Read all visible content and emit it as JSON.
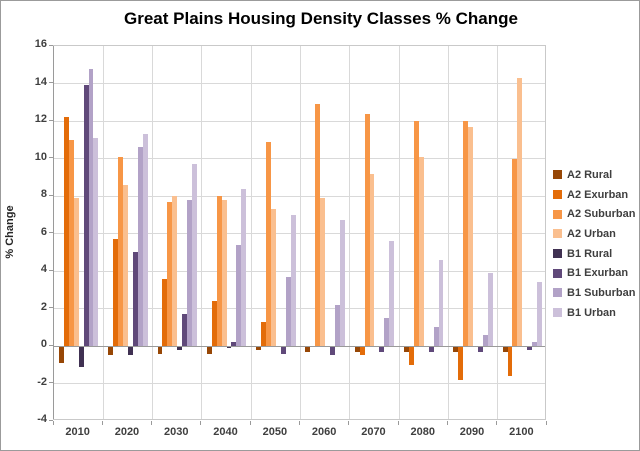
{
  "window": {
    "background": "#ffffff",
    "border_color": "#9b9b9b"
  },
  "chart_data": {
    "type": "bar",
    "title": "Great Plains Housing Density Classes % Change",
    "xlabel": "",
    "ylabel": "% Change",
    "ylim": [
      -4,
      16
    ],
    "yticks": [
      16,
      14,
      12,
      10,
      8,
      6,
      4,
      2,
      0,
      -2,
      -4
    ],
    "grid": true,
    "legend_position": "right",
    "grid_color": "#d9d9d9",
    "axis_color": "#9a9a9a",
    "categories": [
      "2010",
      "2020",
      "2030",
      "2040",
      "2050",
      "2060",
      "2070",
      "2080",
      "2090",
      "2100"
    ],
    "series": [
      {
        "name": "A2 Rural",
        "color": "#974706",
        "values": [
          -0.9,
          -0.5,
          -0.4,
          -0.4,
          -0.2,
          -0.3,
          -0.3,
          -0.3,
          -0.3,
          -0.3
        ]
      },
      {
        "name": "A2 Exurban",
        "color": "#E36C09",
        "values": [
          12.2,
          5.7,
          3.6,
          2.4,
          1.3,
          0.0,
          -0.5,
          -1.0,
          -1.8,
          -1.6
        ]
      },
      {
        "name": "A2 Suburban",
        "color": "#F79646",
        "values": [
          11.0,
          10.1,
          7.7,
          8.0,
          10.9,
          12.9,
          12.4,
          12.0,
          12.0,
          10.0
        ]
      },
      {
        "name": "A2 Urban",
        "color": "#FABF8F",
        "values": [
          7.9,
          8.6,
          8.0,
          7.8,
          7.3,
          7.9,
          9.2,
          10.1,
          11.7,
          14.3
        ]
      },
      {
        "name": "B1 Rural",
        "color": "#403152",
        "values": [
          -1.1,
          -0.5,
          -0.2,
          -0.1,
          0.0,
          0.0,
          0.0,
          0.0,
          0.0,
          0.0
        ]
      },
      {
        "name": "B1 Exurban",
        "color": "#60497A",
        "values": [
          13.9,
          5.0,
          1.7,
          0.2,
          -0.4,
          -0.5,
          -0.3,
          -0.3,
          -0.3,
          -0.2
        ]
      },
      {
        "name": "B1 Suburban",
        "color": "#B2A2C7",
        "values": [
          14.8,
          10.6,
          7.8,
          5.4,
          3.7,
          2.2,
          1.5,
          1.0,
          0.6,
          0.2
        ]
      },
      {
        "name": "B1 Urban",
        "color": "#CCC0DA",
        "values": [
          11.1,
          11.3,
          9.7,
          8.4,
          7.0,
          6.7,
          5.6,
          4.6,
          3.9,
          3.4
        ]
      }
    ]
  }
}
